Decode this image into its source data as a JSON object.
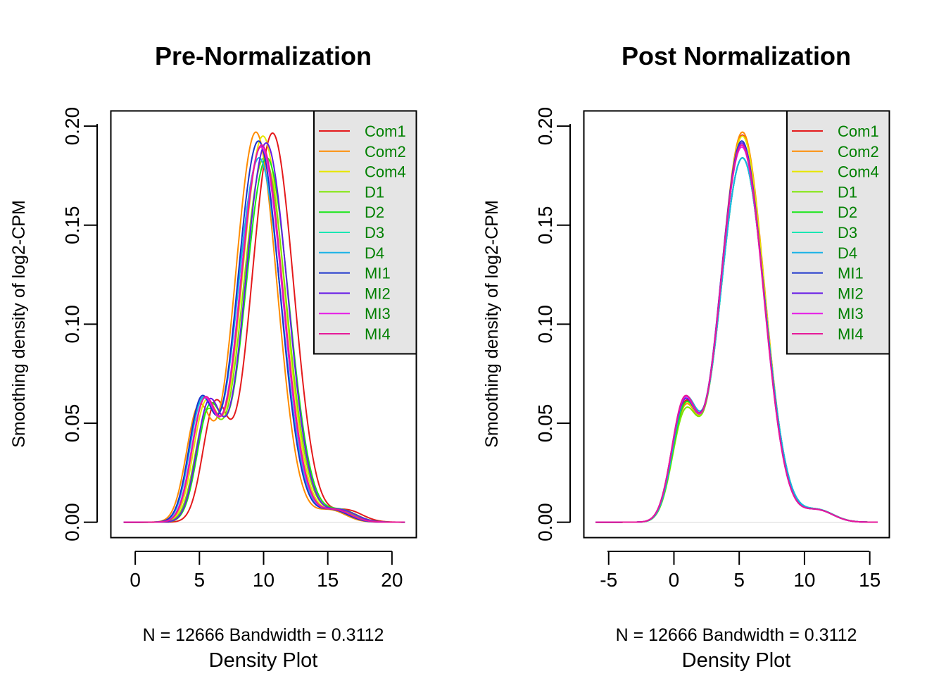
{
  "series_colors": {
    "Com1": "#e41a1c",
    "Com2": "#ff8c00",
    "Com4": "#e6e600",
    "D1": "#7ce600",
    "D2": "#19e619",
    "D3": "#19e6b3",
    "D4": "#19b3e6",
    "MI1": "#1a33cc",
    "MI2": "#661ae6",
    "MI3": "#e61ae6",
    "MI4": "#e61a99"
  },
  "legend_text_color": "#008000",
  "legend_bg_color": "#e5e5e5",
  "chart_data": [
    {
      "type": "line",
      "title": "Pre-Normalization",
      "subtitle": "N = 12666   Bandwidth = 0.3112",
      "xlabel": "Density Plot",
      "ylabel": "Smoothing density of log2-CPM",
      "xlim": [
        -1.9,
        21.9
      ],
      "ylim": [
        -0.0078,
        0.2077
      ],
      "xticks": [
        0,
        5,
        10,
        15,
        20
      ],
      "yticks": [
        0.0,
        0.05,
        0.1,
        0.15,
        0.2
      ],
      "ytick_labels": [
        "0.00",
        "0.05",
        "0.10",
        "0.15",
        "0.20"
      ],
      "xrange": [
        -0.9,
        21.0
      ],
      "legend_position": "top-right",
      "series": [
        {
          "name": "Com1",
          "shift": 1.1,
          "s1": 0.95,
          "s2": 1.65,
          "a2": 0.1965,
          "a1": 0.0805
        },
        {
          "name": "Com2",
          "shift": -0.2,
          "s1": 0.95,
          "s2": 1.65,
          "a2": 0.197,
          "a1": 0.0785
        },
        {
          "name": "Com4",
          "shift": 0.35,
          "s1": 0.95,
          "s2": 1.68,
          "a2": 0.195,
          "a1": 0.08
        },
        {
          "name": "D1",
          "shift": 0.45,
          "s1": 0.95,
          "s2": 1.72,
          "a2": 0.184,
          "a1": 0.0745
        },
        {
          "name": "D2",
          "shift": 0.65,
          "s1": 0.95,
          "s2": 1.72,
          "a2": 0.184,
          "a1": 0.0775
        },
        {
          "name": "D3",
          "shift": 0.05,
          "s1": 0.95,
          "s2": 1.72,
          "a2": 0.184,
          "a1": 0.08
        },
        {
          "name": "D4",
          "shift": 0.05,
          "s1": 0.95,
          "s2": 1.72,
          "a2": 0.184,
          "a1": 0.0805
        },
        {
          "name": "MI1",
          "shift": 0.0,
          "s1": 0.95,
          "s2": 1.68,
          "a2": 0.1925,
          "a1": 0.082
        },
        {
          "name": "MI2",
          "shift": 0.6,
          "s1": 0.95,
          "s2": 1.68,
          "a2": 0.1915,
          "a1": 0.0805
        },
        {
          "name": "MI3",
          "shift": 0.2,
          "s1": 0.95,
          "s2": 1.68,
          "a2": 0.1895,
          "a1": 0.081
        },
        {
          "name": "MI4",
          "shift": 0.25,
          "s1": 0.95,
          "s2": 1.68,
          "a2": 0.1905,
          "a1": 0.0815
        }
      ],
      "base_peaks": {
        "minor": 5.1,
        "major": 9.6
      }
    },
    {
      "type": "line",
      "title": "Post Normalization",
      "subtitle": "N = 12666   Bandwidth = 0.3112",
      "xlabel": "Density Plot",
      "ylabel": "Smoothing density of log2-CPM",
      "xlim": [
        -6.9,
        16.5
      ],
      "ylim": [
        -0.0078,
        0.2077
      ],
      "xticks": [
        -5,
        0,
        5,
        10,
        15
      ],
      "yticks": [
        0.0,
        0.05,
        0.1,
        0.15,
        0.2
      ],
      "ytick_labels": [
        "0.00",
        "0.05",
        "0.10",
        "0.15",
        "0.20"
      ],
      "xrange": [
        -6.0,
        15.6
      ],
      "legend_position": "top-right",
      "series": [
        {
          "name": "Com1",
          "shift": 0.05,
          "s1": 0.95,
          "s2": 1.68,
          "a2": 0.1955,
          "a1": 0.079
        },
        {
          "name": "Com2",
          "shift": 0.05,
          "s1": 0.95,
          "s2": 1.68,
          "a2": 0.197,
          "a1": 0.077
        },
        {
          "name": "Com4",
          "shift": 0.05,
          "s1": 0.95,
          "s2": 1.68,
          "a2": 0.195,
          "a1": 0.078
        },
        {
          "name": "D1",
          "shift": 0.05,
          "s1": 0.95,
          "s2": 1.72,
          "a2": 0.184,
          "a1": 0.0745
        },
        {
          "name": "D2",
          "shift": 0.05,
          "s1": 0.95,
          "s2": 1.72,
          "a2": 0.184,
          "a1": 0.0775
        },
        {
          "name": "D3",
          "shift": 0.05,
          "s1": 0.95,
          "s2": 1.72,
          "a2": 0.184,
          "a1": 0.08
        },
        {
          "name": "D4",
          "shift": 0.05,
          "s1": 0.95,
          "s2": 1.72,
          "a2": 0.184,
          "a1": 0.08
        },
        {
          "name": "MI1",
          "shift": 0.0,
          "s1": 0.95,
          "s2": 1.68,
          "a2": 0.1925,
          "a1": 0.081
        },
        {
          "name": "MI2",
          "shift": 0.0,
          "s1": 0.95,
          "s2": 1.68,
          "a2": 0.1915,
          "a1": 0.08
        },
        {
          "name": "MI3",
          "shift": 0.0,
          "s1": 0.95,
          "s2": 1.68,
          "a2": 0.1895,
          "a1": 0.081
        },
        {
          "name": "MI4",
          "shift": 0.0,
          "s1": 0.95,
          "s2": 1.68,
          "a2": 0.1905,
          "a1": 0.0815
        }
      ],
      "base_peaks": {
        "minor": 0.75,
        "major": 5.2
      }
    }
  ]
}
